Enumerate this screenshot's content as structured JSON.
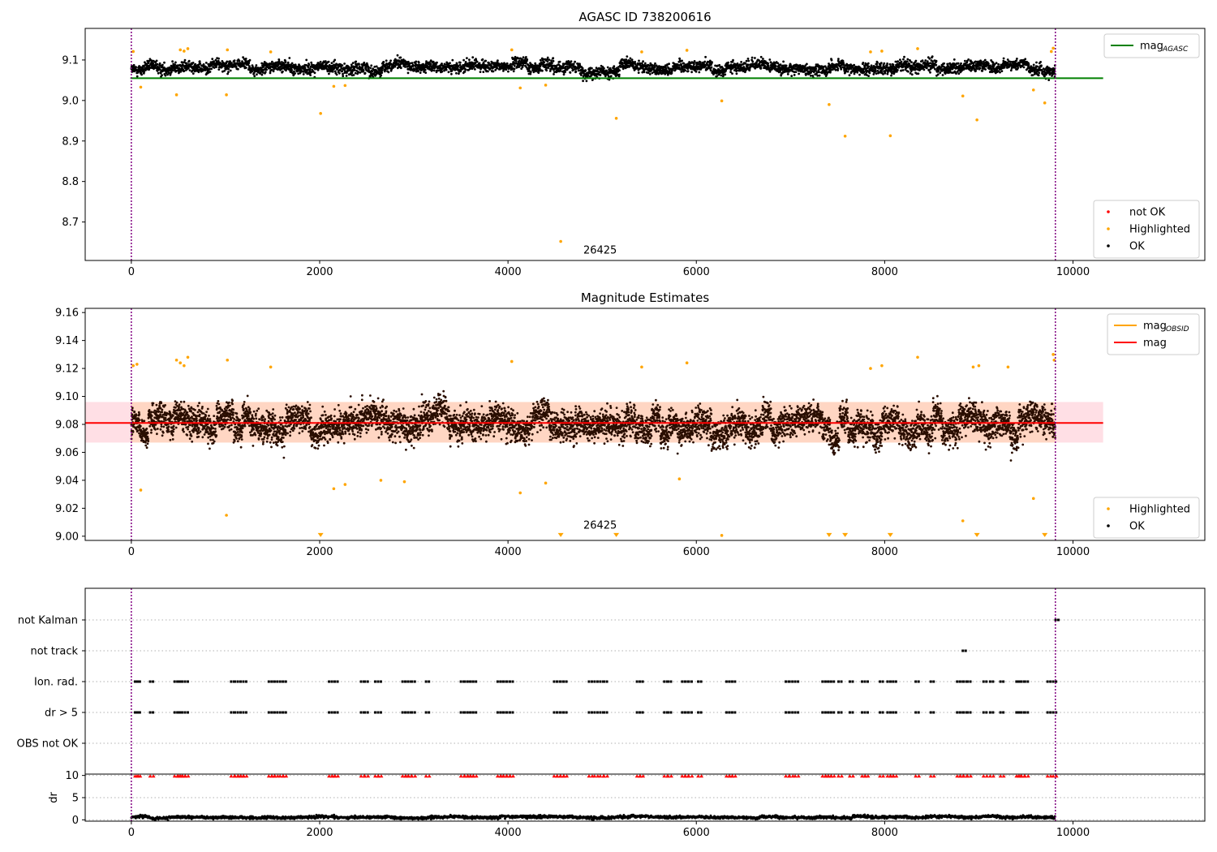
{
  "chart_data": [
    {
      "panel": "agasc",
      "type": "scatter",
      "title": "AGASC ID 738200616",
      "xlabel": "",
      "ylabel": "",
      "xlim": [
        -490,
        11400
      ],
      "ylim": [
        8.605,
        9.178
      ],
      "xticks": [
        0,
        2000,
        4000,
        6000,
        8000,
        10000
      ],
      "xtick_labels": [
        "0",
        "2000",
        "4000",
        "6000",
        "8000",
        "10000"
      ],
      "yticks": [
        8.7,
        8.8,
        8.9,
        9.0,
        9.1
      ],
      "ytick_labels": [
        "8.7",
        "8.8",
        "8.9",
        "9.0",
        "9.1"
      ],
      "vlines": [
        0,
        9813
      ],
      "annotation": {
        "text": "26425",
        "x": 4800,
        "y": 8.63
      },
      "lines": [
        {
          "name": "mag_AGASC",
          "color": "#008000",
          "x": [
            -10,
            10320
          ],
          "y": [
            9.055,
            9.055
          ]
        }
      ],
      "legend_top": {
        "position": "upper right",
        "entries": [
          {
            "base": "mag",
            "sub": "AGASC",
            "color": "#008000",
            "kind": "line"
          }
        ]
      },
      "legend_bottom": {
        "position": "lower right",
        "entries": [
          {
            "label": "not OK",
            "color": "#ff0000",
            "kind": "dot"
          },
          {
            "label": "Highlighted",
            "color": "#ffa500",
            "kind": "dot"
          },
          {
            "label": "OK",
            "color": "#000000",
            "kind": "dot"
          }
        ]
      },
      "ok_band": {
        "x_range": [
          0,
          9813
        ],
        "center_y": 9.082,
        "spread": 0.016,
        "n_points": 4200
      },
      "highlighted": {
        "x": [
          100,
          480,
          1010,
          2010,
          2150,
          2270,
          4130,
          4400,
          4560,
          5150,
          6270,
          7410,
          7580,
          8060,
          8830,
          8980,
          9580,
          9700,
          20,
          520,
          560,
          600,
          1020,
          1480,
          4040,
          5420,
          5900,
          7850,
          7970,
          8350,
          9770,
          9790
        ],
        "y": [
          9.033,
          9.014,
          9.014,
          8.968,
          9.035,
          9.037,
          9.031,
          9.038,
          8.652,
          8.956,
          8.999,
          8.99,
          8.912,
          8.913,
          9.011,
          8.952,
          9.026,
          8.994,
          9.121,
          9.125,
          9.122,
          9.128,
          9.125,
          9.12,
          9.125,
          9.12,
          9.124,
          9.12,
          9.122,
          9.128,
          9.121,
          9.129
        ]
      }
    },
    {
      "panel": "estimates",
      "type": "scatter",
      "title": "Magnitude Estimates",
      "xlabel": "",
      "ylabel": "",
      "xlim": [
        -490,
        11400
      ],
      "ylim": [
        8.997,
        9.163
      ],
      "xticks": [
        0,
        2000,
        4000,
        6000,
        8000,
        10000
      ],
      "xtick_labels": [
        "0",
        "2000",
        "4000",
        "6000",
        "8000",
        "10000"
      ],
      "yticks": [
        9.0,
        9.02,
        9.04,
        9.06,
        9.08,
        9.1,
        9.12,
        9.14,
        9.16
      ],
      "ytick_labels": [
        "9.00",
        "9.02",
        "9.04",
        "9.06",
        "9.08",
        "9.10",
        "9.12",
        "9.14",
        "9.16"
      ],
      "vlines": [
        0,
        9813
      ],
      "annotation": {
        "text": "26425",
        "x": 4800,
        "y": 9.003
      },
      "band": {
        "x": [
          -490,
          10320
        ],
        "y_low": 9.067,
        "y_high": 9.096,
        "color": "#ffc0cb"
      },
      "lines": [
        {
          "name": "mag",
          "color": "#ff0000",
          "x": [
            -490,
            10320
          ],
          "y": [
            9.081,
            9.081
          ]
        }
      ],
      "legend_top": {
        "position": "upper right",
        "entries": [
          {
            "base": "mag",
            "sub": "OBSID",
            "color": "#ffa500",
            "kind": "line"
          },
          {
            "base": "mag",
            "sub": "",
            "color": "#ff0000",
            "kind": "line"
          }
        ]
      },
      "legend_bottom": {
        "position": "lower right",
        "entries": [
          {
            "label": "Highlighted",
            "color": "#ffa500",
            "kind": "dot"
          },
          {
            "label": "OK",
            "color": "#000000",
            "kind": "dot"
          }
        ]
      },
      "ok_band": {
        "x_range": [
          0,
          9813
        ],
        "center_y": 9.08,
        "spread": 0.012,
        "n_points": 6500
      },
      "highlighted": {
        "x": [
          100,
          1010,
          2150,
          2270,
          2650,
          2900,
          4130,
          4400,
          5820,
          8830,
          9580,
          20,
          60,
          480,
          520,
          560,
          600,
          1020,
          1480,
          4040,
          5420,
          5900,
          7850,
          7970,
          8350,
          8940,
          9000,
          9310,
          9790,
          9800
        ],
        "y": [
          9.033,
          9.015,
          9.034,
          9.037,
          9.04,
          9.039,
          9.031,
          9.038,
          9.041,
          9.011,
          9.027,
          9.122,
          9.123,
          9.126,
          9.124,
          9.122,
          9.128,
          9.126,
          9.121,
          9.125,
          9.121,
          9.124,
          9.12,
          9.122,
          9.128,
          9.121,
          9.122,
          9.121,
          9.13,
          9.126
        ]
      },
      "clipped_markers": {
        "x": [
          2010,
          4560,
          5150,
          7410,
          7580,
          8060,
          8980,
          9700
        ],
        "y": 9.0
      },
      "clipped_dots": {
        "x": [
          6270
        ],
        "y": 9.0
      }
    },
    {
      "panel": "flags",
      "type": "scatter",
      "xlim": [
        -490,
        11400
      ],
      "categories": [
        "OBS not OK",
        "dr > 5",
        "Ion. rad.",
        "not track",
        "not Kalman"
      ],
      "vlines": [
        0,
        9813
      ],
      "flag_points": {
        "dr > 5": [
          40,
          60,
          200,
          460,
          490,
          510,
          540,
          570,
          1060,
          1100,
          1130,
          1160,
          1190,
          1460,
          1490,
          1520,
          1580,
          1610,
          2100,
          2130,
          2160,
          2440,
          2480,
          2590,
          2620,
          2880,
          2910,
          2940,
          2980,
          3130,
          3500,
          3540,
          3570,
          3600,
          3630,
          3890,
          3920,
          3950,
          3990,
          4020,
          4490,
          4520,
          4560,
          4590,
          4860,
          4920,
          4980,
          5020,
          5370,
          5400,
          5660,
          5700,
          5850,
          5880,
          5920,
          6020,
          6320,
          6350,
          6380,
          6950,
          6990,
          7050,
          7340,
          7370,
          7400,
          7430,
          7510,
          7630,
          7760,
          7790,
          7950,
          8030,
          8060,
          8090,
          8330,
          8490,
          8770,
          8800,
          8840,
          8880,
          9050,
          9120,
          9230,
          9400,
          9420,
          9450,
          9490,
          9730,
          9790
        ],
        "Ion. rad.": [
          40,
          60,
          200,
          460,
          490,
          510,
          540,
          570,
          1060,
          1100,
          1130,
          1160,
          1190,
          1460,
          1490,
          1520,
          1580,
          1610,
          2100,
          2130,
          2160,
          2440,
          2480,
          2590,
          2620,
          2880,
          2910,
          2940,
          2980,
          3130,
          3500,
          3540,
          3570,
          3600,
          3630,
          3890,
          3920,
          3950,
          3990,
          4020,
          4490,
          4520,
          4560,
          4590,
          4860,
          4920,
          4980,
          5020,
          5370,
          5400,
          5660,
          5700,
          5850,
          5880,
          5920,
          6020,
          6320,
          6350,
          6380,
          6950,
          6990,
          7050,
          7340,
          7370,
          7400,
          7430,
          7510,
          7630,
          7760,
          7790,
          7950,
          8030,
          8060,
          8090,
          8330,
          8490,
          8770,
          8800,
          8840,
          8880,
          9050,
          9120,
          9230,
          9400,
          9420,
          9450,
          9490,
          9730,
          9790
        ],
        "not track": [
          8830
        ],
        "not Kalman": [
          9815
        ]
      }
    },
    {
      "panel": "dr",
      "type": "scatter",
      "xlabel": "",
      "ylabel": "dr",
      "xlim": [
        -490,
        11400
      ],
      "ylim": [
        -0.3,
        10.3
      ],
      "yticks": [
        0,
        5,
        10
      ],
      "ytick_labels": [
        "0",
        "5",
        "10"
      ],
      "xticks": [
        0,
        2000,
        4000,
        6000,
        8000,
        10000
      ],
      "xtick_labels": [
        "0",
        "2000",
        "4000",
        "6000",
        "8000",
        "10000"
      ],
      "vlines": [
        0,
        9813
      ],
      "ok_band": {
        "x_range": [
          0,
          9813
        ],
        "center_y": 0.6,
        "spread": 0.35,
        "n_points": 3000
      },
      "capped_points": {
        "y": 9.9,
        "x": [
          40,
          60,
          200,
          460,
          490,
          510,
          540,
          570,
          1060,
          1100,
          1130,
          1160,
          1190,
          1460,
          1490,
          1520,
          1580,
          1610,
          2100,
          2130,
          2160,
          2440,
          2480,
          2590,
          2620,
          2880,
          2910,
          2940,
          2980,
          3130,
          3500,
          3540,
          3570,
          3600,
          3630,
          3890,
          3920,
          3950,
          3990,
          4020,
          4490,
          4520,
          4560,
          4590,
          4860,
          4920,
          4980,
          5020,
          5370,
          5400,
          5660,
          5700,
          5850,
          5880,
          5920,
          6020,
          6320,
          6350,
          6380,
          6950,
          6990,
          7050,
          7340,
          7370,
          7400,
          7430,
          7510,
          7630,
          7760,
          7790,
          7950,
          8030,
          8060,
          8090,
          8330,
          8490,
          8770,
          8800,
          8840,
          8880,
          9050,
          9120,
          9230,
          9400,
          9420,
          9450,
          9490,
          9730,
          9790
        ]
      }
    }
  ]
}
